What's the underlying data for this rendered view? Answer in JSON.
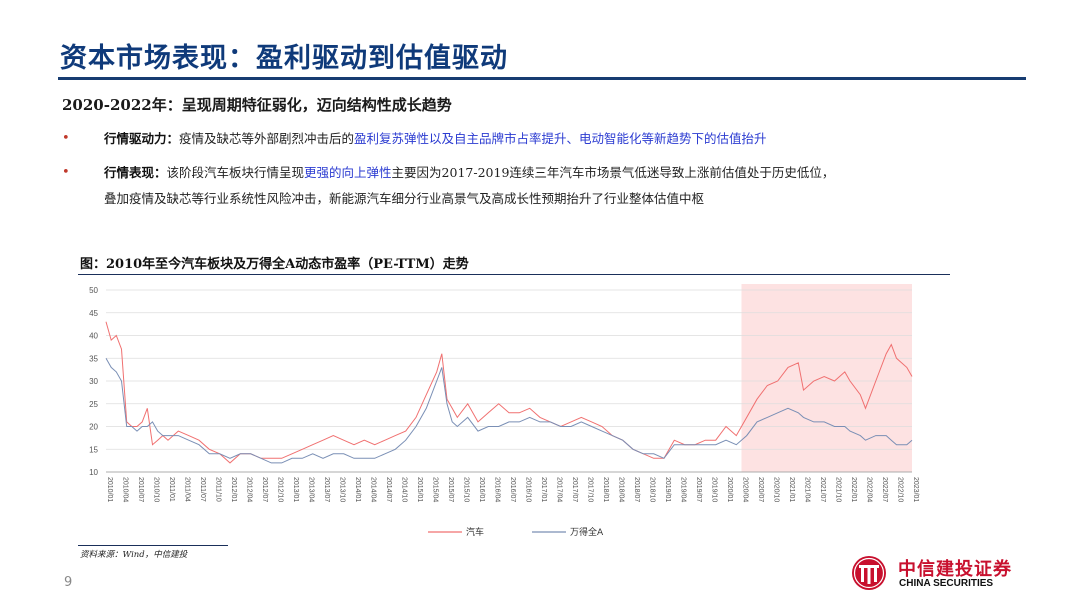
{
  "slide": {
    "title": "资本市场表现：盈利驱动到估值驱动",
    "section_heading": "2020-2022年：呈现周期特征弱化，迈向结构性成长趋势",
    "page_number": "9"
  },
  "bullets": [
    {
      "label": "行情驱动力：",
      "text_before": "疫情及缺芯等外部剧烈冲击后的",
      "highlight": "盈利复苏弹性以及自主品牌市占率提升、电动智能化等新趋势下的估值抬升",
      "text_after": ""
    },
    {
      "label": "行情表现：",
      "text_before": "该阶段汽车板块行情呈现",
      "highlight": "更强的向上弹性",
      "text_after": "主要因为2017-2019连续三年汽车市场景气低迷导致上涨前估值处于历史低位，",
      "text_line2": "叠加疫情及缺芯等行业系统性风险冲击，新能源汽车细分行业高景气及高成长性预期抬升了行业整体估值中枢"
    }
  ],
  "figure": {
    "title": "图：2010年至今汽车板块及万得全A动态市盈率（PE-TTM）走势",
    "source": "资料来源：Wind，中信建投"
  },
  "logo": {
    "name_cn": "中信建投证券",
    "name_en": "CHINA SECURITIES"
  },
  "colors": {
    "title": "#0f3a7a",
    "auto_series": "#f07070",
    "wind_series": "#7a8fb5",
    "highlight_band": "#fde2e2",
    "highlight_text": "#2b3bd1",
    "brand_red": "#c8102e"
  },
  "chart_data": {
    "type": "line",
    "title": "2010年至今汽车板块及万得全A动态市盈率（PE-TTM）走势",
    "xlabel": "",
    "ylabel": "",
    "ylim": [
      10,
      50
    ],
    "yticks": [
      10,
      15,
      20,
      25,
      30,
      35,
      40,
      45,
      50
    ],
    "grid": true,
    "legend_position": "bottom",
    "x_tick_labels": [
      "2010/01",
      "2010/04",
      "2010/07",
      "2010/10",
      "2011/01",
      "2011/04",
      "2011/07",
      "2011/10",
      "2012/01",
      "2012/04",
      "2012/07",
      "2012/10",
      "2013/01",
      "2013/04",
      "2013/07",
      "2013/10",
      "2014/01",
      "2014/04",
      "2014/07",
      "2014/10",
      "2015/01",
      "2015/04",
      "2015/07",
      "2015/10",
      "2016/01",
      "2016/04",
      "2016/07",
      "2016/10",
      "2017/01",
      "2017/04",
      "2017/07",
      "2017/10",
      "2018/01",
      "2018/04",
      "2018/07",
      "2018/10",
      "2019/01",
      "2019/04",
      "2019/07",
      "2019/10",
      "2020/01",
      "2020/04",
      "2020/07",
      "2020/10",
      "2021/01",
      "2021/04",
      "2021/07",
      "2021/10",
      "2022/01",
      "2022/04",
      "2022/07",
      "2022/10",
      "2023/01"
    ],
    "highlight_range": [
      "2020/04",
      "2023/01"
    ],
    "series": [
      {
        "name": "汽车",
        "points": [
          [
            "2010/01",
            43
          ],
          [
            "2010/02",
            39
          ],
          [
            "2010/03",
            40
          ],
          [
            "2010/04",
            37
          ],
          [
            "2010/05",
            21
          ],
          [
            "2010/06",
            20
          ],
          [
            "2010/07",
            20
          ],
          [
            "2010/08",
            21
          ],
          [
            "2010/09",
            24
          ],
          [
            "2010/10",
            16
          ],
          [
            "2010/11",
            17
          ],
          [
            "2010/12",
            18
          ],
          [
            "2011/01",
            17
          ],
          [
            "2011/03",
            19
          ],
          [
            "2011/05",
            18
          ],
          [
            "2011/07",
            17
          ],
          [
            "2011/09",
            15
          ],
          [
            "2011/11",
            14
          ],
          [
            "2012/01",
            12
          ],
          [
            "2012/03",
            14
          ],
          [
            "2012/05",
            14
          ],
          [
            "2012/07",
            13
          ],
          [
            "2012/09",
            13
          ],
          [
            "2012/11",
            13
          ],
          [
            "2013/01",
            14
          ],
          [
            "2013/03",
            15
          ],
          [
            "2013/05",
            16
          ],
          [
            "2013/07",
            17
          ],
          [
            "2013/09",
            18
          ],
          [
            "2013/11",
            17
          ],
          [
            "2014/01",
            16
          ],
          [
            "2014/03",
            17
          ],
          [
            "2014/05",
            16
          ],
          [
            "2014/07",
            17
          ],
          [
            "2014/09",
            18
          ],
          [
            "2014/11",
            19
          ],
          [
            "2015/01",
            22
          ],
          [
            "2015/03",
            27
          ],
          [
            "2015/05",
            32
          ],
          [
            "2015/06",
            36
          ],
          [
            "2015/07",
            26
          ],
          [
            "2015/08",
            24
          ],
          [
            "2015/09",
            22
          ],
          [
            "2015/11",
            25
          ],
          [
            "2016/01",
            21
          ],
          [
            "2016/03",
            23
          ],
          [
            "2016/05",
            25
          ],
          [
            "2016/07",
            23
          ],
          [
            "2016/09",
            23
          ],
          [
            "2016/11",
            24
          ],
          [
            "2017/01",
            22
          ],
          [
            "2017/03",
            21
          ],
          [
            "2017/05",
            20
          ],
          [
            "2017/07",
            21
          ],
          [
            "2017/09",
            22
          ],
          [
            "2017/11",
            21
          ],
          [
            "2018/01",
            20
          ],
          [
            "2018/03",
            18
          ],
          [
            "2018/05",
            17
          ],
          [
            "2018/07",
            15
          ],
          [
            "2018/09",
            14
          ],
          [
            "2018/11",
            13
          ],
          [
            "2019/01",
            13
          ],
          [
            "2019/03",
            17
          ],
          [
            "2019/05",
            16
          ],
          [
            "2019/07",
            16
          ],
          [
            "2019/09",
            17
          ],
          [
            "2019/11",
            17
          ],
          [
            "2020/01",
            20
          ],
          [
            "2020/03",
            18
          ],
          [
            "2020/05",
            22
          ],
          [
            "2020/07",
            26
          ],
          [
            "2020/09",
            29
          ],
          [
            "2020/11",
            30
          ],
          [
            "2021/01",
            33
          ],
          [
            "2021/03",
            34
          ],
          [
            "2021/04",
            28
          ],
          [
            "2021/06",
            30
          ],
          [
            "2021/08",
            31
          ],
          [
            "2021/10",
            30
          ],
          [
            "2021/12",
            32
          ],
          [
            "2022/01",
            30
          ],
          [
            "2022/03",
            27
          ],
          [
            "2022/04",
            24
          ],
          [
            "2022/06",
            30
          ],
          [
            "2022/08",
            36
          ],
          [
            "2022/09",
            38
          ],
          [
            "2022/10",
            35
          ],
          [
            "2022/12",
            33
          ],
          [
            "2023/01",
            31
          ]
        ]
      },
      {
        "name": "万得全A",
        "points": [
          [
            "2010/01",
            35
          ],
          [
            "2010/02",
            33
          ],
          [
            "2010/03",
            32
          ],
          [
            "2010/04",
            30
          ],
          [
            "2010/05",
            20
          ],
          [
            "2010/06",
            20
          ],
          [
            "2010/07",
            19
          ],
          [
            "2010/08",
            20
          ],
          [
            "2010/09",
            20
          ],
          [
            "2010/10",
            21
          ],
          [
            "2010/11",
            19
          ],
          [
            "2010/12",
            18
          ],
          [
            "2011/01",
            18
          ],
          [
            "2011/03",
            18
          ],
          [
            "2011/05",
            17
          ],
          [
            "2011/07",
            16
          ],
          [
            "2011/09",
            14
          ],
          [
            "2011/11",
            14
          ],
          [
            "2012/01",
            13
          ],
          [
            "2012/03",
            14
          ],
          [
            "2012/05",
            14
          ],
          [
            "2012/07",
            13
          ],
          [
            "2012/09",
            12
          ],
          [
            "2012/11",
            12
          ],
          [
            "2013/01",
            13
          ],
          [
            "2013/03",
            13
          ],
          [
            "2013/05",
            14
          ],
          [
            "2013/07",
            13
          ],
          [
            "2013/09",
            14
          ],
          [
            "2013/11",
            14
          ],
          [
            "2014/01",
            13
          ],
          [
            "2014/03",
            13
          ],
          [
            "2014/05",
            13
          ],
          [
            "2014/07",
            14
          ],
          [
            "2014/09",
            15
          ],
          [
            "2014/11",
            17
          ],
          [
            "2015/01",
            20
          ],
          [
            "2015/03",
            24
          ],
          [
            "2015/05",
            30
          ],
          [
            "2015/06",
            33
          ],
          [
            "2015/07",
            25
          ],
          [
            "2015/08",
            21
          ],
          [
            "2015/09",
            20
          ],
          [
            "2015/11",
            22
          ],
          [
            "2016/01",
            19
          ],
          [
            "2016/03",
            20
          ],
          [
            "2016/05",
            20
          ],
          [
            "2016/07",
            21
          ],
          [
            "2016/09",
            21
          ],
          [
            "2016/11",
            22
          ],
          [
            "2017/01",
            21
          ],
          [
            "2017/03",
            21
          ],
          [
            "2017/05",
            20
          ],
          [
            "2017/07",
            20
          ],
          [
            "2017/09",
            21
          ],
          [
            "2017/11",
            20
          ],
          [
            "2018/01",
            19
          ],
          [
            "2018/03",
            18
          ],
          [
            "2018/05",
            17
          ],
          [
            "2018/07",
            15
          ],
          [
            "2018/09",
            14
          ],
          [
            "2018/11",
            14
          ],
          [
            "2019/01",
            13
          ],
          [
            "2019/03",
            16
          ],
          [
            "2019/05",
            16
          ],
          [
            "2019/07",
            16
          ],
          [
            "2019/09",
            16
          ],
          [
            "2019/11",
            16
          ],
          [
            "2020/01",
            17
          ],
          [
            "2020/03",
            16
          ],
          [
            "2020/05",
            18
          ],
          [
            "2020/07",
            21
          ],
          [
            "2020/09",
            22
          ],
          [
            "2020/11",
            23
          ],
          [
            "2021/01",
            24
          ],
          [
            "2021/03",
            23
          ],
          [
            "2021/04",
            22
          ],
          [
            "2021/06",
            21
          ],
          [
            "2021/08",
            21
          ],
          [
            "2021/10",
            20
          ],
          [
            "2021/12",
            20
          ],
          [
            "2022/01",
            19
          ],
          [
            "2022/03",
            18
          ],
          [
            "2022/04",
            17
          ],
          [
            "2022/06",
            18
          ],
          [
            "2022/08",
            18
          ],
          [
            "2022/09",
            17
          ],
          [
            "2022/10",
            16
          ],
          [
            "2022/12",
            16
          ],
          [
            "2023/01",
            17
          ]
        ]
      }
    ]
  }
}
